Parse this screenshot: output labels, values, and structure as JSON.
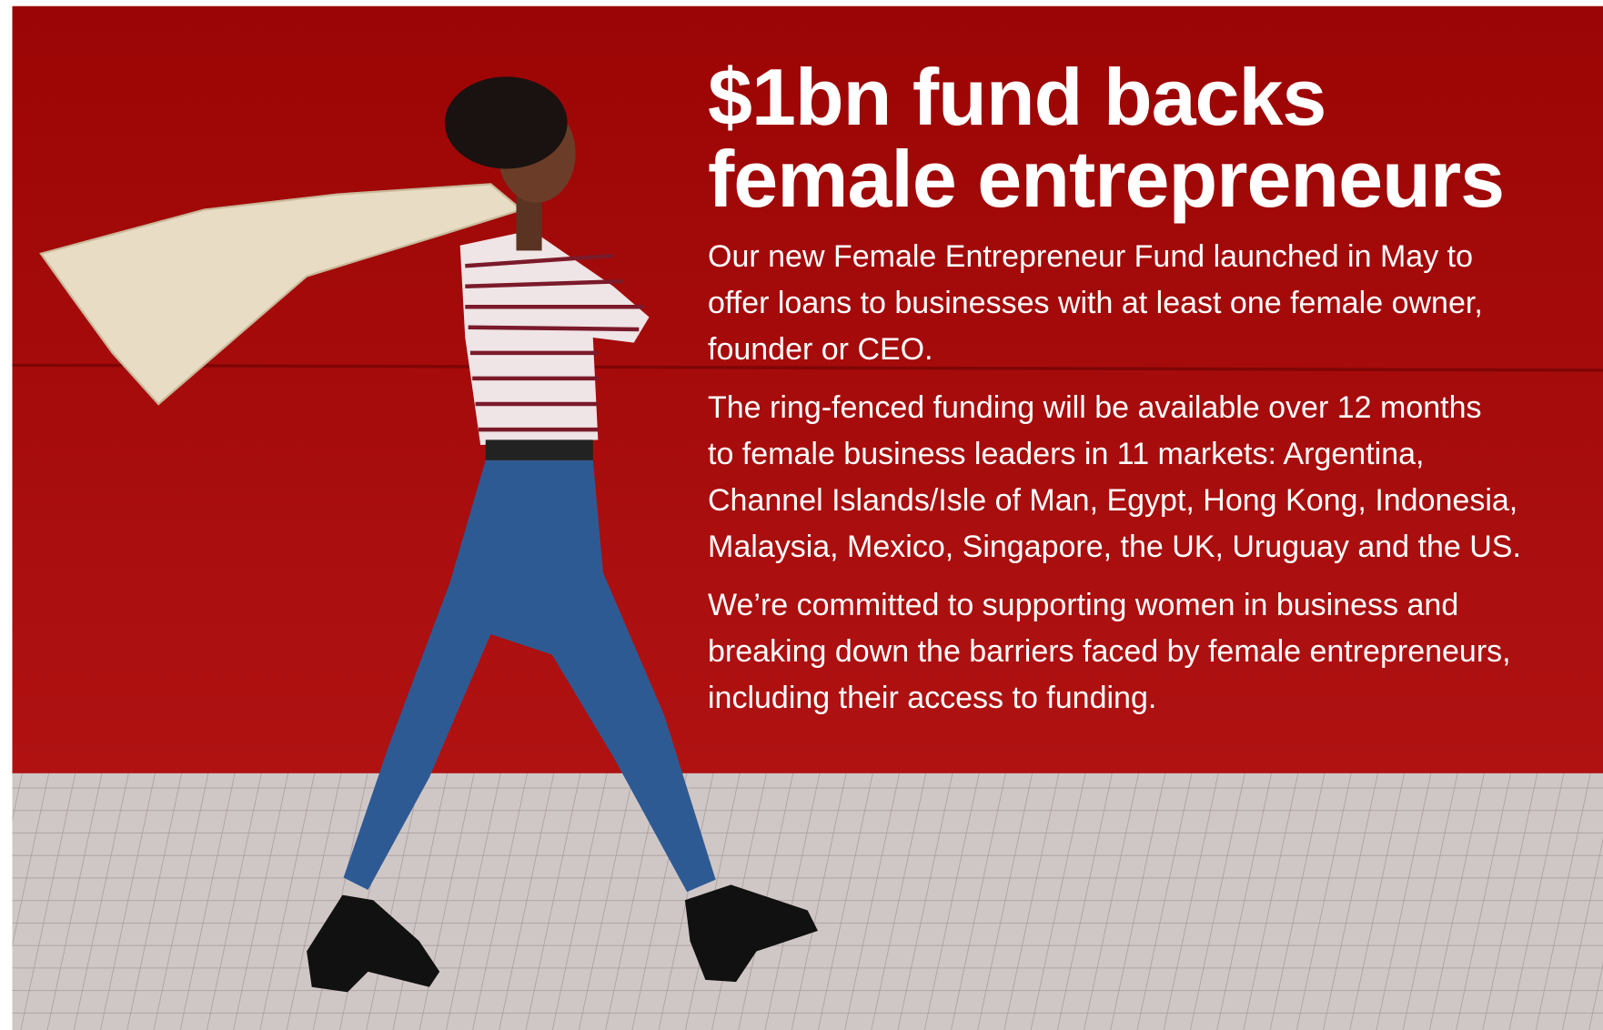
{
  "title": {
    "lines": [
      "$1bn fund backs",
      "female entrepreneurs"
    ]
  },
  "body": {
    "paragraphs": [
      [
        "Our new Female Entrepreneur Fund launched in May to",
        "offer loans to businesses with at least one female owner,",
        "founder or CEO."
      ],
      [
        "The ring-fenced funding will be available over 12 months",
        "to female business leaders in 11 markets: Argentina,",
        "Channel Islands/Isle of Man, Egypt, Hong Kong, Indonesia,",
        "Malaysia, Mexico, Singapore, the UK, Uruguay and the US."
      ],
      [
        "We’re committed to supporting women in business and",
        "breaking down the barriers faced by female entrepreneurs,",
        "including their access to funding."
      ]
    ]
  }
}
